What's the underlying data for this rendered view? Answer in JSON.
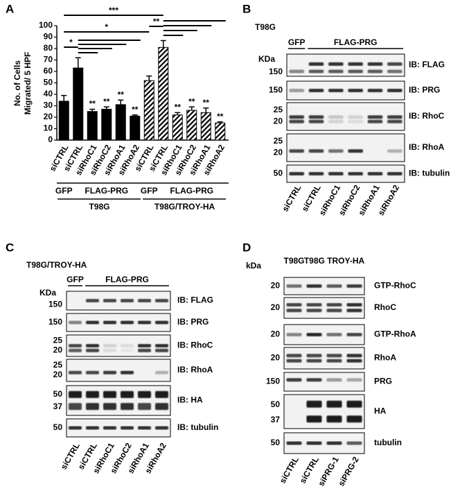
{
  "chart_data": {
    "type": "bar",
    "panel": "A",
    "ylabel": [
      "No. of Cells",
      "Migrated/ 5 HPF"
    ],
    "categories": [
      "siCTRL",
      "siCTRL",
      "siRhoC1",
      "siRhoC2",
      "siRhoA1",
      "siRhoA2",
      "siCTRL",
      "siCTRL",
      "siRhoC1",
      "siRhoC2",
      "siRhoA1",
      "siRhoA2"
    ],
    "values": [
      34,
      63,
      25,
      27,
      31,
      21,
      52,
      81,
      22,
      26,
      24,
      15
    ],
    "errors": [
      5,
      9,
      2,
      2,
      4,
      1,
      4,
      6,
      2,
      3,
      4,
      1
    ],
    "bar_styles": [
      "solid",
      "solid",
      "solid",
      "solid",
      "solid",
      "solid",
      "hatched",
      "hatched",
      "hatched",
      "hatched",
      "hatched",
      "hatched"
    ],
    "color": "#000000",
    "annotations": [
      null,
      null,
      "**",
      "**",
      "**",
      "**",
      null,
      null,
      "**",
      "**",
      "**",
      "**"
    ],
    "significance": [
      "***",
      "*",
      "**",
      "*"
    ],
    "groups": [
      "GFP",
      "FLAG-PRG",
      "GFP",
      "FLAG-PRG"
    ],
    "cell_lines": [
      "T98G",
      "T98G/TROY-HA"
    ],
    "ylim": [
      0,
      100
    ],
    "yticks": [
      0,
      10,
      20,
      30,
      40,
      50,
      60,
      70,
      80,
      90,
      100
    ]
  },
  "blots": [
    {
      "panel": "B",
      "cell_line": "T98G",
      "kda_label": "KDa",
      "groups": [
        "GFP",
        "FLAG-PRG"
      ],
      "rows": [
        {
          "label": "IB: FLAG",
          "markers": [
            150
          ]
        },
        {
          "label": "IB: PRG",
          "markers": [
            150
          ]
        },
        {
          "label": "IB: RhoC",
          "markers": [
            25,
            20
          ]
        },
        {
          "label": "IB: RhoA",
          "markers": [
            25,
            20
          ]
        },
        {
          "label": "IB: tubulin",
          "markers": [
            50
          ]
        }
      ],
      "lanes": [
        "siCTRL",
        "siCTRL",
        "siRhoC1",
        "siRhoC2",
        "siRhoA1",
        "siRhoA2"
      ]
    },
    {
      "panel": "C",
      "cell_line": "T98G/TROY-HA",
      "kda_label": "KDa",
      "groups": [
        "GFP",
        "FLAG-PRG"
      ],
      "rows": [
        {
          "label": "IB: FLAG",
          "markers": [
            150
          ]
        },
        {
          "label": "IB: PRG",
          "markers": [
            150
          ]
        },
        {
          "label": "IB: RhoC",
          "markers": [
            25,
            20
          ]
        },
        {
          "label": "IB: RhoA",
          "markers": [
            25,
            20
          ]
        },
        {
          "label": "IB: HA",
          "markers": [
            50,
            37
          ]
        },
        {
          "label": "IB: tubulin",
          "markers": [
            50
          ]
        }
      ],
      "lanes": [
        "siCTRL",
        "siCTRL",
        "siRhoC1",
        "siRhoC2",
        "siRhoA1",
        "siRhoA2"
      ]
    },
    {
      "panel": "D",
      "kda_label": "kDa",
      "groups": [
        "T98G",
        "T98G TROY-HA"
      ],
      "rows": [
        {
          "label": "GTP-RhoC",
          "markers": [
            20
          ]
        },
        {
          "label": "RhoC",
          "markers": [
            20
          ]
        },
        {
          "label": "GTP-RhoA",
          "markers": [
            20
          ]
        },
        {
          "label": "RhoA",
          "markers": [
            20
          ]
        },
        {
          "label": "PRG",
          "markers": [
            150
          ]
        },
        {
          "label": "HA",
          "markers": [
            50,
            37
          ]
        },
        {
          "label": "tubulin",
          "markers": [
            50
          ]
        }
      ],
      "lanes": [
        "siCTRL",
        "siCTRL",
        "siPRG-1",
        "siPRG-2"
      ]
    }
  ]
}
